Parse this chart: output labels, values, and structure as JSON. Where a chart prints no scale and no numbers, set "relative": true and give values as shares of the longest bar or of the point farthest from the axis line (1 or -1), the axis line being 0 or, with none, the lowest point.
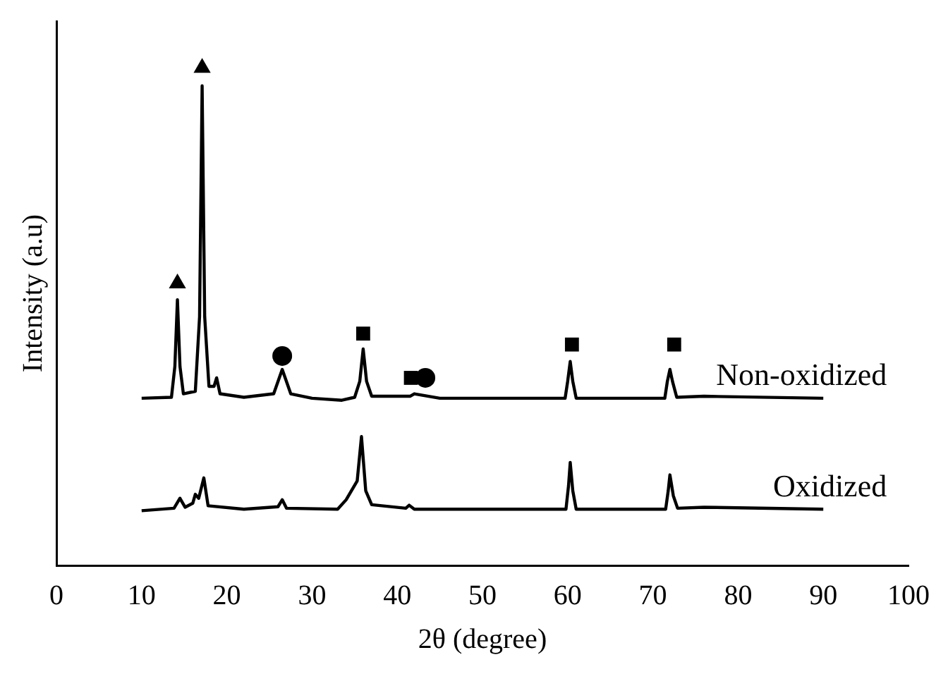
{
  "chart_data": {
    "type": "line",
    "relative": true,
    "xlabel": "2θ (degree)",
    "ylabel": "Intensity (a.u)",
    "xlim": [
      0,
      100
    ],
    "xticks": [
      0,
      10,
      20,
      30,
      40,
      50,
      60,
      70,
      80,
      90,
      100
    ],
    "grid": false,
    "legend": false,
    "series": [
      {
        "name": "Non-oxidized",
        "color": "#000000",
        "marker": "none",
        "x": [
          10,
          13.5,
          13.9,
          14.2,
          14.5,
          14.9,
          16.3,
          16.8,
          17.1,
          17.4,
          17.9,
          18.5,
          18.8,
          19.2,
          22,
          25.5,
          26.5,
          27.5,
          30,
          33.5,
          35,
          35.6,
          36,
          36.4,
          37,
          41.5,
          42,
          45,
          59.7,
          60,
          60.3,
          60.6,
          61,
          71.4,
          71.7,
          72,
          72.3,
          72.8,
          76,
          90
        ],
        "values": [
          0.336,
          0.338,
          0.4,
          0.534,
          0.4,
          0.345,
          0.35,
          0.5,
          0.964,
          0.5,
          0.36,
          0.36,
          0.377,
          0.345,
          0.338,
          0.345,
          0.394,
          0.345,
          0.336,
          0.332,
          0.338,
          0.37,
          0.435,
          0.37,
          0.34,
          0.34,
          0.345,
          0.336,
          0.336,
          0.37,
          0.41,
          0.37,
          0.336,
          0.336,
          0.37,
          0.394,
          0.37,
          0.338,
          0.34,
          0.336
        ]
      },
      {
        "name": "Oxidized",
        "color": "#000000",
        "marker": "none",
        "x": [
          10,
          13.8,
          14.5,
          15.1,
          16,
          16.3,
          16.7,
          17.3,
          17.8,
          22,
          26,
          26.5,
          27,
          33,
          34,
          35.3,
          35.8,
          36.3,
          37,
          41,
          41.4,
          42,
          59.8,
          60.1,
          60.3,
          60.6,
          61,
          71.5,
          71.8,
          72,
          72.4,
          72.9,
          76,
          90
        ],
        "values": [
          0.11,
          0.115,
          0.135,
          0.117,
          0.125,
          0.143,
          0.135,
          0.176,
          0.12,
          0.113,
          0.118,
          0.132,
          0.115,
          0.113,
          0.132,
          0.17,
          0.259,
          0.15,
          0.122,
          0.115,
          0.121,
          0.113,
          0.113,
          0.16,
          0.207,
          0.15,
          0.113,
          0.113,
          0.15,
          0.182,
          0.14,
          0.115,
          0.117,
          0.113
        ]
      },
      {
        "type": "scatter",
        "marker": "triangle",
        "color": "#000000",
        "x": [
          14.2,
          17.1
        ],
        "values": [
          0.567,
          1
        ]
      },
      {
        "type": "scatter",
        "marker": "circle",
        "color": "#000000",
        "x": [
          26.5,
          43.3
        ],
        "values": [
          0.421,
          0.377
        ]
      },
      {
        "type": "scatter",
        "marker": "square",
        "color": "#000000",
        "x": [
          36,
          41.6,
          60.5,
          72.5
        ],
        "values": [
          0.466,
          0.377,
          0.444,
          0.444
        ]
      }
    ]
  }
}
